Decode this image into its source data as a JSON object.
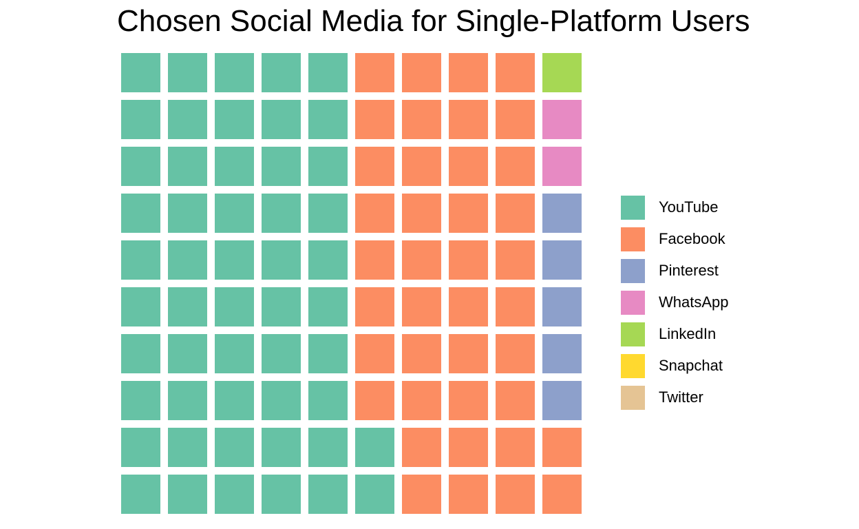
{
  "chart_data": {
    "type": "waffle",
    "title": "Chosen Social Media for Single-Platform Users",
    "grid": {
      "rows": 10,
      "cols": 10
    },
    "categories": [
      "YouTube",
      "Facebook",
      "Pinterest",
      "WhatsApp",
      "LinkedIn",
      "Snapchat",
      "Twitter"
    ],
    "values": [
      52,
      40,
      5,
      2,
      1,
      1,
      1
    ],
    "colors": [
      "#66c2a5",
      "#fc8d62",
      "#8da0cb",
      "#e78ac3",
      "#a6d854",
      "#ffd92f",
      "#e5c494"
    ],
    "fill_order": "column-wise from bottom-left",
    "legend_position": "right"
  }
}
